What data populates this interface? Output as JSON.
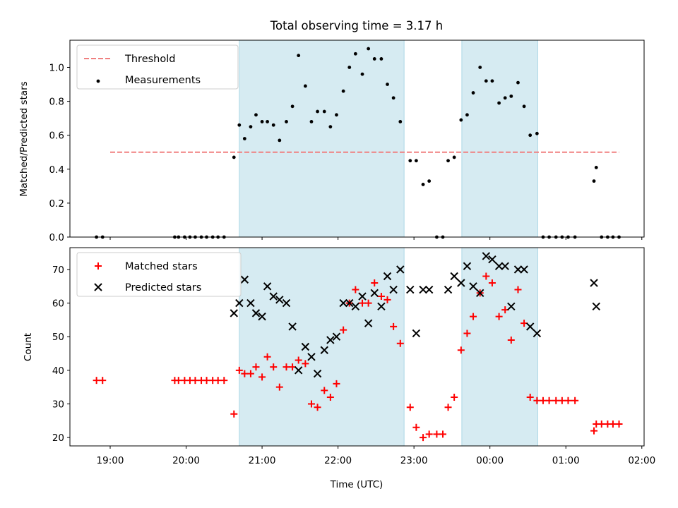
{
  "chart_data": [
    {
      "type": "scatter",
      "title": "Total observing time = 3.17 h",
      "xlabel": "",
      "ylabel": "Matched/Predicted stars",
      "ylim": [
        0,
        1.16
      ],
      "yticks": [
        "0.0",
        "0.2",
        "0.4",
        "0.6",
        "0.8",
        "1.0"
      ],
      "yticks_values": [
        0,
        0.2,
        0.4,
        0.6,
        0.8,
        1.0
      ],
      "xlim_hours": [
        18.47,
        26.03
      ],
      "xticks_values": [
        19,
        20,
        21,
        22,
        23,
        24,
        25,
        26
      ],
      "show_xtick_labels": false,
      "grid": false,
      "legend_position": "upper-left",
      "threshold": {
        "name": "Threshold",
        "value": 0.5,
        "x_range": [
          19.0,
          25.7
        ],
        "color": "#f08080"
      },
      "shaded_intervals": [
        [
          20.7,
          22.87
        ],
        [
          23.63,
          24.63
        ]
      ],
      "series": [
        {
          "name": "Measurements",
          "marker": "dot",
          "color": "#000000",
          "points": [
            [
              18.82,
              0
            ],
            [
              18.9,
              0
            ],
            [
              19.85,
              0
            ],
            [
              19.9,
              0
            ],
            [
              19.98,
              0
            ],
            [
              20.05,
              0
            ],
            [
              20.12,
              0
            ],
            [
              20.2,
              0
            ],
            [
              20.27,
              0
            ],
            [
              20.35,
              0
            ],
            [
              20.42,
              0
            ],
            [
              20.5,
              0
            ],
            [
              20.63,
              0.47
            ],
            [
              20.7,
              0.66
            ],
            [
              20.77,
              0.58
            ],
            [
              20.85,
              0.65
            ],
            [
              20.92,
              0.72
            ],
            [
              21.0,
              0.68
            ],
            [
              21.07,
              0.68
            ],
            [
              21.15,
              0.66
            ],
            [
              21.23,
              0.57
            ],
            [
              21.32,
              0.68
            ],
            [
              21.4,
              0.77
            ],
            [
              21.48,
              1.07
            ],
            [
              21.57,
              0.89
            ],
            [
              21.65,
              0.68
            ],
            [
              21.73,
              0.74
            ],
            [
              21.82,
              0.74
            ],
            [
              21.9,
              0.65
            ],
            [
              21.98,
              0.72
            ],
            [
              22.07,
              0.86
            ],
            [
              22.15,
              1.0
            ],
            [
              22.23,
              1.08
            ],
            [
              22.32,
              0.96
            ],
            [
              22.4,
              1.11
            ],
            [
              22.48,
              1.05
            ],
            [
              22.57,
              1.05
            ],
            [
              22.65,
              0.9
            ],
            [
              22.73,
              0.82
            ],
            [
              22.82,
              0.68
            ],
            [
              22.95,
              0.45
            ],
            [
              23.03,
              0.45
            ],
            [
              23.12,
              0.31
            ],
            [
              23.2,
              0.33
            ],
            [
              23.3,
              0
            ],
            [
              23.38,
              0
            ],
            [
              23.45,
              0.45
            ],
            [
              23.53,
              0.47
            ],
            [
              23.62,
              0.69
            ],
            [
              23.7,
              0.72
            ],
            [
              23.78,
              0.85
            ],
            [
              23.87,
              1.0
            ],
            [
              23.95,
              0.92
            ],
            [
              24.03,
              0.92
            ],
            [
              24.12,
              0.79
            ],
            [
              24.2,
              0.82
            ],
            [
              24.28,
              0.83
            ],
            [
              24.37,
              0.91
            ],
            [
              24.45,
              0.77
            ],
            [
              24.53,
              0.6
            ],
            [
              24.62,
              0.61
            ],
            [
              24.7,
              0
            ],
            [
              24.78,
              0
            ],
            [
              24.87,
              0
            ],
            [
              24.95,
              0
            ],
            [
              25.03,
              0
            ],
            [
              25.12,
              0
            ],
            [
              25.37,
              0.33
            ],
            [
              25.4,
              0.41
            ],
            [
              25.47,
              0
            ],
            [
              25.55,
              0
            ],
            [
              25.62,
              0
            ],
            [
              25.7,
              0
            ]
          ]
        }
      ]
    },
    {
      "type": "scatter",
      "title": "",
      "xlabel": "Time (UTC)",
      "ylabel": "Count",
      "ylim": [
        17.5,
        76.5
      ],
      "yticks": [
        "20",
        "30",
        "40",
        "50",
        "60",
        "70"
      ],
      "yticks_values": [
        20,
        30,
        40,
        50,
        60,
        70
      ],
      "xlim_hours": [
        18.47,
        26.03
      ],
      "xticks_values": [
        19,
        20,
        21,
        22,
        23,
        24,
        25,
        26
      ],
      "xticks": [
        "19:00",
        "20:00",
        "21:00",
        "22:00",
        "23:00",
        "00:00",
        "01:00",
        "02:00"
      ],
      "grid": false,
      "legend_position": "upper-left",
      "shaded_intervals": [
        [
          20.7,
          22.87
        ],
        [
          23.63,
          24.63
        ]
      ],
      "series": [
        {
          "name": "Matched stars",
          "marker": "plus",
          "color": "#ff0000",
          "points": [
            [
              18.82,
              37
            ],
            [
              18.9,
              37
            ],
            [
              19.85,
              37
            ],
            [
              19.9,
              37
            ],
            [
              19.98,
              37
            ],
            [
              20.05,
              37
            ],
            [
              20.12,
              37
            ],
            [
              20.2,
              37
            ],
            [
              20.27,
              37
            ],
            [
              20.35,
              37
            ],
            [
              20.42,
              37
            ],
            [
              20.5,
              37
            ],
            [
              20.63,
              27
            ],
            [
              20.7,
              40
            ],
            [
              20.77,
              39
            ],
            [
              20.85,
              39
            ],
            [
              20.92,
              41
            ],
            [
              21.0,
              38
            ],
            [
              21.07,
              44
            ],
            [
              21.15,
              41
            ],
            [
              21.23,
              35
            ],
            [
              21.32,
              41
            ],
            [
              21.4,
              41
            ],
            [
              21.48,
              43
            ],
            [
              21.57,
              42
            ],
            [
              21.65,
              30
            ],
            [
              21.73,
              29
            ],
            [
              21.82,
              34
            ],
            [
              21.9,
              32
            ],
            [
              21.98,
              36
            ],
            [
              22.07,
              52
            ],
            [
              22.15,
              60
            ],
            [
              22.23,
              64
            ],
            [
              22.32,
              60
            ],
            [
              22.4,
              60
            ],
            [
              22.48,
              66
            ],
            [
              22.57,
              62
            ],
            [
              22.65,
              61
            ],
            [
              22.73,
              53
            ],
            [
              22.82,
              48
            ],
            [
              22.95,
              29
            ],
            [
              23.03,
              23
            ],
            [
              23.12,
              20
            ],
            [
              23.2,
              21
            ],
            [
              23.3,
              21
            ],
            [
              23.38,
              21
            ],
            [
              23.45,
              29
            ],
            [
              23.53,
              32
            ],
            [
              23.62,
              46
            ],
            [
              23.7,
              51
            ],
            [
              23.78,
              56
            ],
            [
              23.87,
              63
            ],
            [
              23.95,
              68
            ],
            [
              24.03,
              66
            ],
            [
              24.12,
              56
            ],
            [
              24.2,
              58
            ],
            [
              24.28,
              49
            ],
            [
              24.37,
              64
            ],
            [
              24.45,
              54
            ],
            [
              24.53,
              32
            ],
            [
              24.62,
              31
            ],
            [
              24.7,
              31
            ],
            [
              24.78,
              31
            ],
            [
              24.87,
              31
            ],
            [
              24.95,
              31
            ],
            [
              25.03,
              31
            ],
            [
              25.12,
              31
            ],
            [
              25.37,
              22
            ],
            [
              25.4,
              24
            ],
            [
              25.47,
              24
            ],
            [
              25.55,
              24
            ],
            [
              25.62,
              24
            ],
            [
              25.7,
              24
            ]
          ]
        },
        {
          "name": "Predicted stars",
          "marker": "x",
          "color": "#000000",
          "points": [
            [
              20.63,
              57
            ],
            [
              20.7,
              60
            ],
            [
              20.77,
              67
            ],
            [
              20.85,
              60
            ],
            [
              20.92,
              57
            ],
            [
              21.0,
              56
            ],
            [
              21.07,
              65
            ],
            [
              21.15,
              62
            ],
            [
              21.23,
              61
            ],
            [
              21.32,
              60
            ],
            [
              21.4,
              53
            ],
            [
              21.48,
              40
            ],
            [
              21.57,
              47
            ],
            [
              21.65,
              44
            ],
            [
              21.73,
              39
            ],
            [
              21.82,
              46
            ],
            [
              21.9,
              49
            ],
            [
              21.98,
              50
            ],
            [
              22.07,
              60
            ],
            [
              22.15,
              60
            ],
            [
              22.23,
              59
            ],
            [
              22.32,
              62
            ],
            [
              22.4,
              54
            ],
            [
              22.48,
              63
            ],
            [
              22.57,
              59
            ],
            [
              22.65,
              68
            ],
            [
              22.73,
              64
            ],
            [
              22.82,
              70
            ],
            [
              22.95,
              64
            ],
            [
              23.03,
              51
            ],
            [
              23.12,
              64
            ],
            [
              23.2,
              64
            ],
            [
              23.45,
              64
            ],
            [
              23.53,
              68
            ],
            [
              23.62,
              66
            ],
            [
              23.7,
              71
            ],
            [
              23.78,
              65
            ],
            [
              23.87,
              63
            ],
            [
              23.95,
              74
            ],
            [
              24.03,
              73
            ],
            [
              24.12,
              71
            ],
            [
              24.2,
              71
            ],
            [
              24.28,
              59
            ],
            [
              24.37,
              70
            ],
            [
              24.45,
              70
            ],
            [
              24.53,
              53
            ],
            [
              24.62,
              51
            ],
            [
              25.37,
              66
            ],
            [
              25.4,
              59
            ]
          ]
        }
      ]
    }
  ]
}
